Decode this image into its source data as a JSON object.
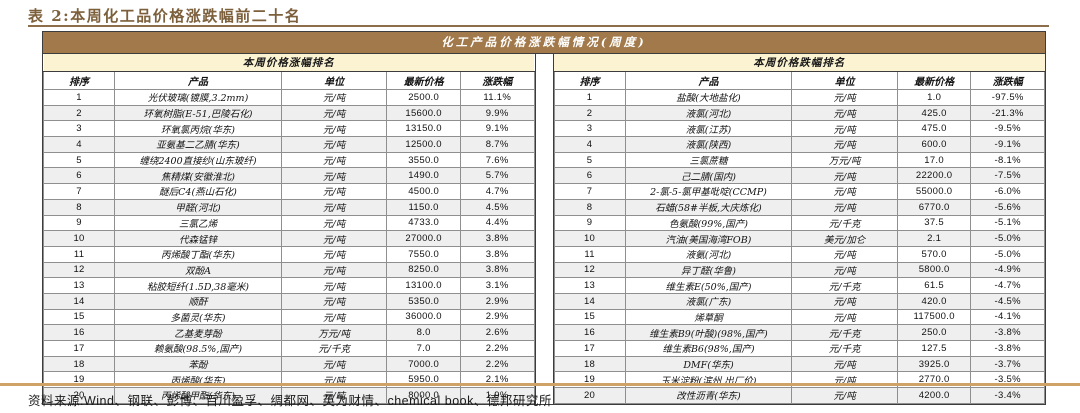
{
  "page": {
    "title": "表 2:本周化工品价格涨跌幅前二十名",
    "source_note": "资料来源:Wind、钢联、彭博、百川盈孚、绸都网、英为财情、chemical book、德邦研究所"
  },
  "colors": {
    "header_band": "#A2794A",
    "section_band": "#FCF3D2",
    "row_stripe": "#EFEFEF",
    "title_text": "#7C5F3B",
    "bottom_rule": "#CFA265",
    "header_text": "#FFFFFF",
    "border_dark": "#3C3C3C",
    "border_light": "#8F8F8F"
  },
  "table": {
    "main_header": "化工产品价格涨跌幅情况(周度)",
    "columns": [
      "排序",
      "产品",
      "单位",
      "最新价格",
      "涨跌幅"
    ],
    "gainers": {
      "section_title": "本周价格涨幅排名",
      "rows": [
        [
          "1",
          "光伏玻璃(镀膜,3.2mm)",
          "元/吨",
          "2500.0",
          "11.1%"
        ],
        [
          "2",
          "环氧树脂(E-51,巴陵石化)",
          "元/吨",
          "15600.0",
          "9.9%"
        ],
        [
          "3",
          "环氧氯丙烷(华东)",
          "元/吨",
          "13150.0",
          "9.1%"
        ],
        [
          "4",
          "亚氨基二乙腈(华东)",
          "元/吨",
          "12500.0",
          "8.7%"
        ],
        [
          "5",
          "缠绕2400直接纱(山东玻纤)",
          "元/吨",
          "3550.0",
          "7.6%"
        ],
        [
          "6",
          "焦精煤(安徽淮北)",
          "元/吨",
          "1490.0",
          "5.7%"
        ],
        [
          "7",
          "醚后C4(燕山石化)",
          "元/吨",
          "4500.0",
          "4.7%"
        ],
        [
          "8",
          "甲醛(河北)",
          "元/吨",
          "1150.0",
          "4.5%"
        ],
        [
          "9",
          "三氯乙烯",
          "元/吨",
          "4733.0",
          "4.4%"
        ],
        [
          "10",
          "代森锰锌",
          "元/吨",
          "27000.0",
          "3.8%"
        ],
        [
          "11",
          "丙烯酸丁酯(华东)",
          "元/吨",
          "7550.0",
          "3.8%"
        ],
        [
          "12",
          "双酚A",
          "元/吨",
          "8250.0",
          "3.8%"
        ],
        [
          "13",
          "粘胶短纤(1.5D,38毫米)",
          "元/吨",
          "13100.0",
          "3.1%"
        ],
        [
          "14",
          "顺酐",
          "元/吨",
          "5350.0",
          "2.9%"
        ],
        [
          "15",
          "多菌灵(华东)",
          "元/吨",
          "36000.0",
          "2.9%"
        ],
        [
          "16",
          "乙基麦芽酚",
          "万元/吨",
          "8.0",
          "2.6%"
        ],
        [
          "17",
          "赖氨酸(98.5%,国产)",
          "元/千克",
          "7.0",
          "2.2%"
        ],
        [
          "18",
          "苯酚",
          "元/吨",
          "7000.0",
          "2.2%"
        ],
        [
          "19",
          "丙烯酸(华东)",
          "元/吨",
          "5950.0",
          "2.1%"
        ],
        [
          "20",
          "丙烯酸甲酯(华东)",
          "元/吨",
          "8000.0",
          "1.9%"
        ]
      ]
    },
    "losers": {
      "section_title": "本周价格跌幅排名",
      "rows": [
        [
          "1",
          "盐酸(大地盐化)",
          "元/吨",
          "1.0",
          "-97.5%"
        ],
        [
          "2",
          "液氯(河北)",
          "元/吨",
          "425.0",
          "-21.3%"
        ],
        [
          "3",
          "液氯(江苏)",
          "元/吨",
          "475.0",
          "-9.5%"
        ],
        [
          "4",
          "液氯(陕西)",
          "元/吨",
          "600.0",
          "-9.1%"
        ],
        [
          "5",
          "三氯蔗糖",
          "万元/吨",
          "17.0",
          "-8.1%"
        ],
        [
          "6",
          "己二腈(国内)",
          "元/吨",
          "22200.0",
          "-7.5%"
        ],
        [
          "7",
          "2-氯-5-氯甲基吡啶(CCMP)",
          "元/吨",
          "55000.0",
          "-6.0%"
        ],
        [
          "8",
          "石蜡(58#半板,大庆炼化)",
          "元/吨",
          "6770.0",
          "-5.6%"
        ],
        [
          "9",
          "色氨酸(99%,国产)",
          "元/千克",
          "37.5",
          "-5.1%"
        ],
        [
          "10",
          "汽油(美国海湾FOB)",
          "美元/加仑",
          "2.1",
          "-5.0%"
        ],
        [
          "11",
          "液氨(河北)",
          "元/吨",
          "570.0",
          "-5.0%"
        ],
        [
          "12",
          "异丁醛(华鲁)",
          "元/吨",
          "5800.0",
          "-4.9%"
        ],
        [
          "13",
          "维生素E(50%,国产)",
          "元/千克",
          "61.5",
          "-4.7%"
        ],
        [
          "14",
          "液氯(广东)",
          "元/吨",
          "420.0",
          "-4.5%"
        ],
        [
          "15",
          "烯草酮",
          "元/吨",
          "117500.0",
          "-4.1%"
        ],
        [
          "16",
          "维生素B9(叶酸)(98%,国产)",
          "元/千克",
          "250.0",
          "-3.8%"
        ],
        [
          "17",
          "维生素B6(98%,国产)",
          "元/千克",
          "127.5",
          "-3.8%"
        ],
        [
          "18",
          "DMF(华东)",
          "元/吨",
          "3925.0",
          "-3.7%"
        ],
        [
          "19",
          "玉米淀粉(滨州,出厂价)",
          "元/吨",
          "2770.0",
          "-3.5%"
        ],
        [
          "20",
          "改性沥青(华东)",
          "元/吨",
          "4200.0",
          "-3.4%"
        ]
      ]
    }
  }
}
